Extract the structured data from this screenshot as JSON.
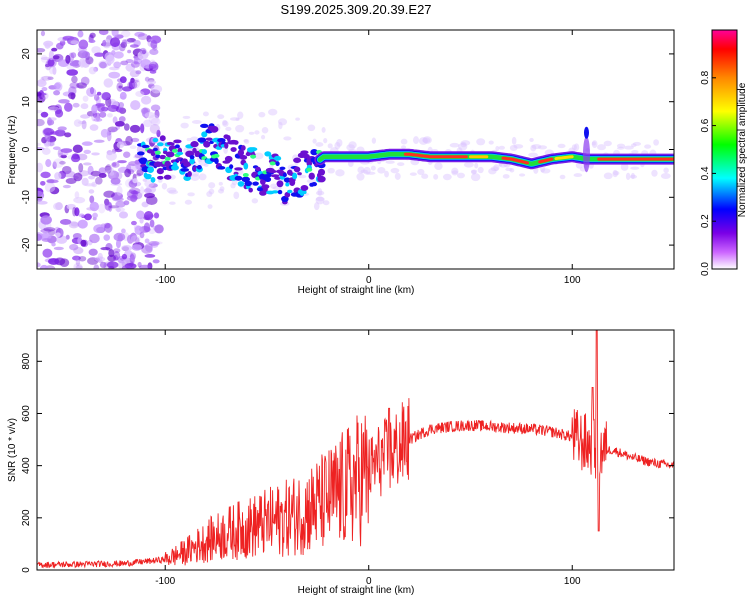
{
  "title": "S199.2025.309.20.39.E27",
  "colors": {
    "snr_line": "#ee2222",
    "axes": "#000000",
    "ridge_core": "#ee2222",
    "ridge_edge": "#1fe03a",
    "noise": "#7a1ee6"
  },
  "chart_data": [
    {
      "type": "heatmap",
      "title": "S199.2025.309.20.39.E27",
      "xlabel": "Height of straight line (km)",
      "ylabel": "Frequency (Hz)",
      "xlim": [
        -163,
        150
      ],
      "ylim": [
        -25,
        25
      ],
      "xticks": [
        -100,
        0,
        100
      ],
      "yticks": [
        -20,
        -10,
        0,
        10,
        20
      ],
      "colorbar": {
        "label": "Normalized spectral amplitude",
        "range": [
          0,
          1
        ],
        "ticks": [
          "0.0",
          "0.2",
          "0.4",
          "0.6",
          "0.8"
        ],
        "stops": [
          "#ffffff",
          "#cc66ff",
          "#7a00e6",
          "#0000ff",
          "#00ffff",
          "#00ff00",
          "#ffff00",
          "#ff8800",
          "#ff0000",
          "#ff0099"
        ]
      },
      "ridge": {
        "x": [
          -112,
          -100,
          -90,
          -80,
          -70,
          -60,
          -50,
          -40,
          -30,
          -22,
          -10,
          0,
          10,
          20,
          30,
          40,
          50,
          60,
          70,
          80,
          90,
          100,
          107,
          115,
          130,
          150
        ],
        "frequency": [
          -3,
          -1.5,
          -2,
          1,
          -1,
          -4,
          -5,
          -7,
          -4,
          -1.5,
          -1.5,
          -1.5,
          -1,
          -1,
          -1.5,
          -1.5,
          -1.5,
          -1.5,
          -2,
          -3,
          -2,
          -1.5,
          -2,
          -2,
          -2,
          -2
        ]
      }
    },
    {
      "type": "line",
      "xlabel": "Height of straight line (km)",
      "ylabel": "SNR (10 * v/v)",
      "xlim": [
        -163,
        150
      ],
      "ylim": [
        0,
        920
      ],
      "xticks": [
        -100,
        0,
        100
      ],
      "yticks": [
        0,
        200,
        400,
        600,
        800
      ],
      "series": [
        {
          "name": "SNR",
          "x": [
            -163,
            -140,
            -120,
            -100,
            -90,
            -80,
            -70,
            -60,
            -50,
            -40,
            -30,
            -20,
            -10,
            0,
            5,
            10,
            20,
            30,
            40,
            50,
            60,
            70,
            80,
            90,
            100,
            105,
            110,
            112,
            115,
            120,
            130,
            140,
            150
          ],
          "y": [
            20,
            22,
            25,
            40,
            70,
            110,
            140,
            160,
            180,
            200,
            230,
            270,
            320,
            380,
            420,
            440,
            500,
            540,
            550,
            555,
            550,
            545,
            540,
            530,
            510,
            490,
            470,
            450,
            460,
            460,
            430,
            410,
            400
          ],
          "spikes": [
            {
              "x": 10,
              "y": 620
            },
            {
              "x": 110,
              "y": 700
            },
            {
              "x": 112,
              "y": 920
            },
            {
              "x": 113,
              "y": 150
            }
          ]
        }
      ]
    }
  ]
}
